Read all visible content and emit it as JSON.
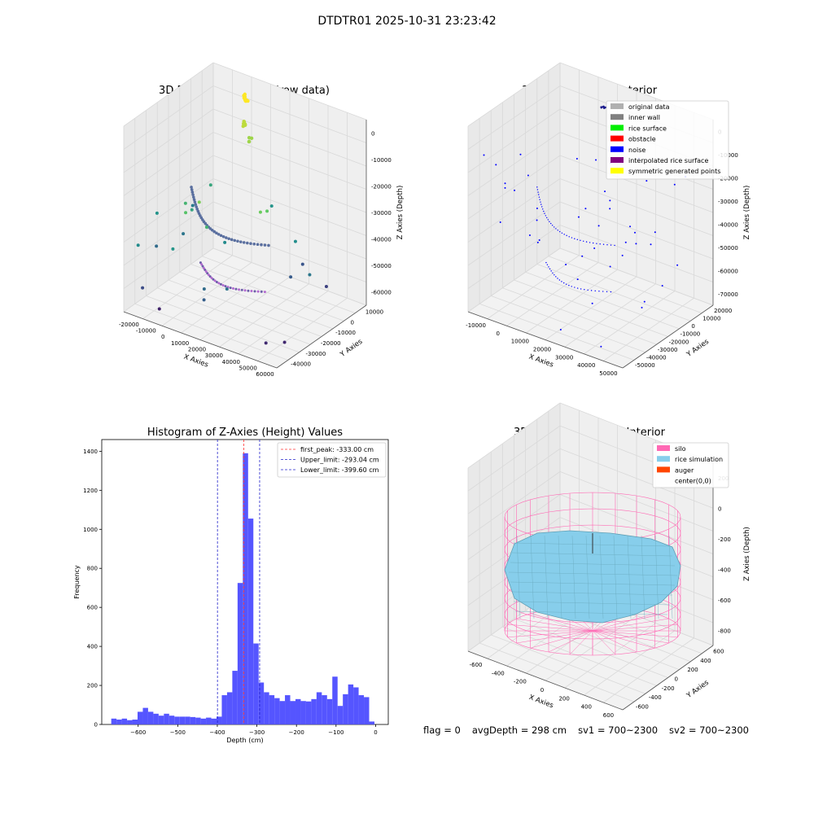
{
  "figure": {
    "suptitle": "DTDTR01 2025-10-31 23:23:42",
    "status": {
      "flag": "flag = 0",
      "avg": "avgDepth = 298 cm",
      "sv1": "sv1 = 700~2300",
      "sv2": "sv2 = 700~2300"
    },
    "colors": {
      "histogram": "#5555ff",
      "first_peak": "#ff3333",
      "limits": "#2222cc",
      "silo": "#ff69b4",
      "rice": "#87ceeb",
      "auger": "#ff4500",
      "noise": "#0000ff"
    }
  },
  "chart_data": [
    {
      "type": "scatter",
      "subtype": "3d",
      "title": "3D Plot of Silo Interior(row data)",
      "xlabel": "X Axies",
      "ylabel": "Y Axies",
      "zlabel": "Z Axies (Depth)",
      "xticks": [
        "-20000",
        "-10000",
        "0",
        "10000",
        "20000",
        "30000",
        "40000",
        "50000",
        "60000"
      ],
      "yticks": [
        "10000",
        "0",
        "-10000",
        "-20000",
        "-30000",
        "-40000"
      ],
      "zticks": [
        "0",
        "-10000",
        "-20000",
        "-30000",
        "-40000",
        "-50000",
        "-60000"
      ],
      "xlim": [
        -22000,
        62000
      ],
      "ylim": [
        -45000,
        12000
      ],
      "zlim": [
        -68000,
        3000
      ],
      "grid": true,
      "colormap": "viridis (by Z)",
      "points_note": "point cloud of silo interior, colored by depth"
    },
    {
      "type": "scatter",
      "subtype": "3d",
      "title": "3D classify of Silo Interior",
      "xlabel": "X Axies",
      "ylabel": "Y Axies",
      "zlabel": "Z Axies (Depth)",
      "xticks": [
        "-10000",
        "0",
        "10000",
        "20000",
        "30000",
        "40000",
        "50000"
      ],
      "yticks": [
        "20000",
        "10000",
        "0",
        "-10000",
        "-20000",
        "-30000",
        "-40000",
        "-50000"
      ],
      "zticks": [
        "0",
        "-10000",
        "-20000",
        "-30000",
        "-40000",
        "-50000",
        "-60000",
        "-70000"
      ],
      "xlim": [
        -14000,
        56000
      ],
      "ylim": [
        -52000,
        22000
      ],
      "zlim": [
        -72000,
        4000
      ],
      "grid": true,
      "legend_position": "upper right",
      "legend": [
        {
          "label": "original data",
          "color": "#b0b0b0"
        },
        {
          "label": "inner wall",
          "color": "#808080"
        },
        {
          "label": "rice surface",
          "color": "#00ee00"
        },
        {
          "label": "obstacle",
          "color": "#ff0000"
        },
        {
          "label": "noise",
          "color": "#0000ff"
        },
        {
          "label": "interpolated rice surface",
          "color": "#800080"
        },
        {
          "label": "symmetric generated points",
          "color": "#ffff00"
        }
      ]
    },
    {
      "type": "bar",
      "subtype": "histogram",
      "title": "Histogram of Z-Axies (Height) Values",
      "xlabel": "Depth (cm)",
      "ylabel": "Frequency",
      "xlim": [
        -692,
        32
      ],
      "ylim": [
        0,
        1460
      ],
      "xticks": [
        -600,
        -500,
        -400,
        -300,
        -200,
        -100,
        0
      ],
      "yticks": [
        0,
        200,
        400,
        600,
        800,
        1000,
        1200,
        1400
      ],
      "bin_start": -668,
      "bin_width": 13.3,
      "values": [
        30,
        25,
        30,
        22,
        25,
        65,
        85,
        65,
        55,
        45,
        55,
        45,
        40,
        40,
        40,
        38,
        35,
        30,
        35,
        30,
        40,
        150,
        165,
        275,
        725,
        1390,
        1055,
        415,
        215,
        165,
        150,
        135,
        120,
        150,
        120,
        130,
        120,
        118,
        130,
        165,
        150,
        130,
        245,
        95,
        155,
        205,
        190,
        150,
        140,
        15
      ],
      "legend_position": "upper right",
      "lines": [
        {
          "label": "first_peak: -333.00 cm",
          "x": -333.0,
          "color": "#ff3333"
        },
        {
          "label": "Upper_limit: -293.04 cm",
          "x": -293.04,
          "color": "#2222cc"
        },
        {
          "label": "Lower_limit: -399.60 cm",
          "x": -399.6,
          "color": "#2222cc"
        }
      ]
    },
    {
      "type": "surface",
      "subtype": "3d",
      "title": "3D simulation of Silo Interior",
      "xlabel": "X Axies",
      "ylabel": "Y Axies",
      "zlabel": "Z Axies (Depth)",
      "xticks": [
        "-600",
        "-400",
        "-200",
        "0",
        "200",
        "400",
        "600"
      ],
      "yticks": [
        "600",
        "400",
        "200",
        "0",
        "-200",
        "-400",
        "-600"
      ],
      "zticks": [
        "200",
        "0",
        "-200",
        "-400",
        "-600",
        "-800"
      ],
      "xlim": [
        -650,
        650
      ],
      "ylim": [
        -650,
        650
      ],
      "zlim": [
        -900,
        300
      ],
      "grid": true,
      "legend_position": "upper right",
      "legend": [
        {
          "label": "silo",
          "color": "#ff69b4"
        },
        {
          "label": "rice simulation",
          "color": "#87ceeb"
        },
        {
          "label": "auger",
          "color": "#ff4500"
        },
        {
          "label": "center(0,0)",
          "color": ""
        }
      ]
    }
  ]
}
